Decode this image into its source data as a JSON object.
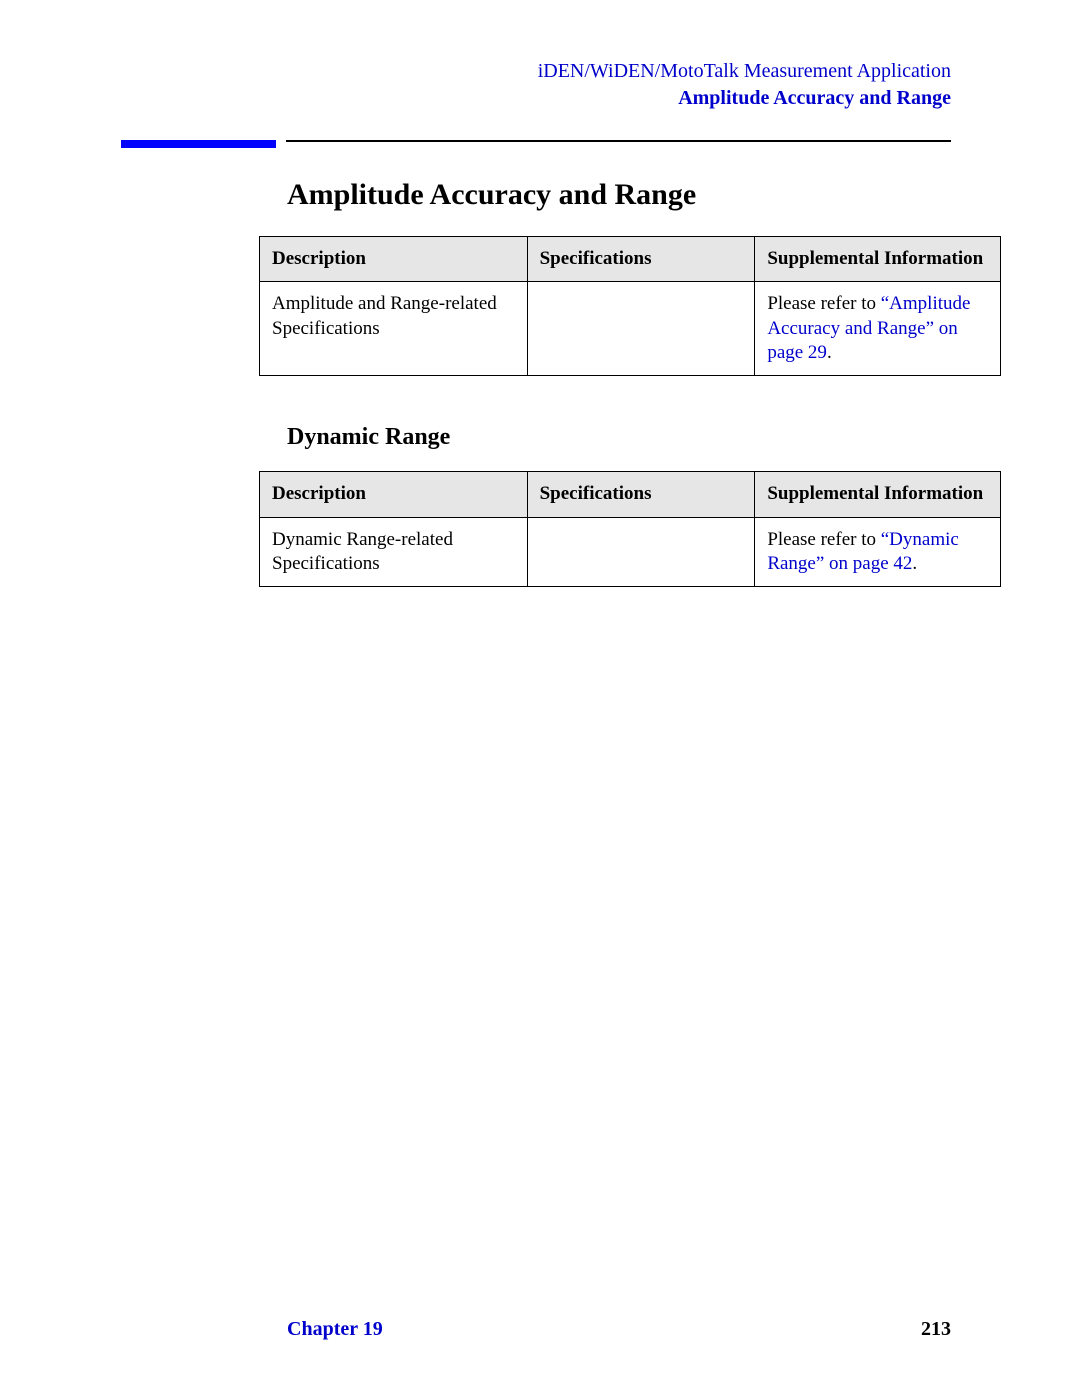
{
  "header": {
    "line1": "iDEN/WiDEN/MotoTalk Measurement Application",
    "line2": "Amplitude Accuracy and Range"
  },
  "colors": {
    "link": "#0000cc",
    "blue_bar": "#0000ff",
    "table_header_bg": "#e6e6e6",
    "text": "#000000",
    "page_bg": "#ffffff"
  },
  "section1": {
    "title": "Amplitude Accuracy and Range",
    "table": {
      "columns": [
        "Description",
        "Specifications",
        "Supplemental Information"
      ],
      "row": {
        "description": "Amplitude and Range-related Specifications",
        "specifications": "",
        "supp_prefix": "Please refer to ",
        "supp_link": "“Amplitude Accuracy and Range” on page 29",
        "supp_suffix": "."
      }
    }
  },
  "section2": {
    "title": "Dynamic Range",
    "table": {
      "columns": [
        "Description",
        "Specifications",
        "Supplemental Information"
      ],
      "row": {
        "description": "Dynamic Range-related Specifications",
        "specifications": "",
        "supp_prefix": "Please refer to ",
        "supp_link": "“Dynamic Range” on page  42",
        "supp_suffix": "."
      }
    }
  },
  "footer": {
    "chapter": "Chapter 19",
    "page_number": "213"
  }
}
